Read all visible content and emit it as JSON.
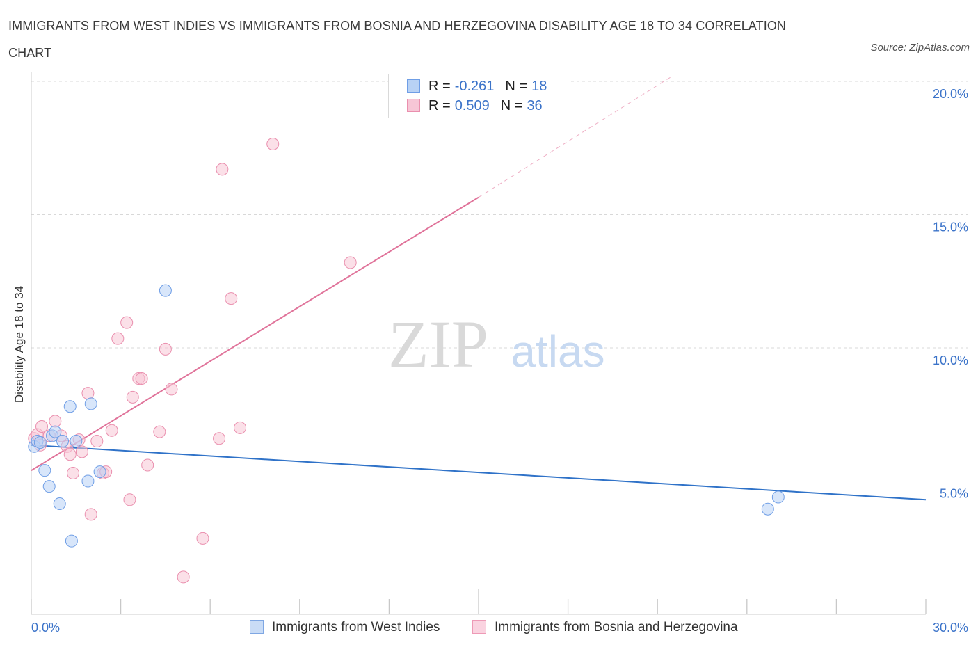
{
  "title": "IMMIGRANTS FROM WEST INDIES VS IMMIGRANTS FROM BOSNIA AND HERZEGOVINA DISABILITY AGE 18 TO 34 CORRELATION CHART",
  "source": "Source: ZipAtlas.com",
  "watermark": {
    "zip": "ZIP",
    "atlas": "atlas"
  },
  "legend": {
    "rows": [
      {
        "r_label": "R =",
        "r_value": "-0.261",
        "n_label": "N =",
        "n_value": "18"
      },
      {
        "r_label": "R =",
        "r_value": "0.509",
        "n_label": "N =",
        "n_value": "36"
      }
    ]
  },
  "chart_data": {
    "type": "scatter",
    "title": "Immigrants from West Indies vs Immigrants from Bosnia and Herzegovina Disability Age 18 to 34 Correlation Chart",
    "xlabel": "",
    "ylabel": "Disability Age 18 to 34",
    "xlim": [
      0,
      30
    ],
    "ylim": [
      0,
      20
    ],
    "x_tick_labels": [
      "0.0%",
      "30.0%"
    ],
    "y_ticks": [
      5,
      10,
      15,
      20
    ],
    "y_tick_labels": [
      "5.0%",
      "10.0%",
      "15.0%",
      "20.0%"
    ],
    "grid": true,
    "legend_position": "top-center",
    "series": [
      {
        "name": "Immigrants from West Indies",
        "color": "#6f9ee6",
        "fill": "#b8d2f5",
        "r": -0.261,
        "n": 18,
        "trend": {
          "x": [
            0,
            30
          ],
          "y": [
            6.35,
            4.3
          ]
        },
        "points": [
          {
            "x": 0.1,
            "y": 6.3
          },
          {
            "x": 0.2,
            "y": 6.5
          },
          {
            "x": 0.3,
            "y": 6.45
          },
          {
            "x": 0.45,
            "y": 5.4
          },
          {
            "x": 0.6,
            "y": 4.8
          },
          {
            "x": 0.7,
            "y": 6.7
          },
          {
            "x": 0.8,
            "y": 6.85
          },
          {
            "x": 0.95,
            "y": 4.15
          },
          {
            "x": 1.05,
            "y": 6.5
          },
          {
            "x": 1.3,
            "y": 7.8
          },
          {
            "x": 1.35,
            "y": 2.75
          },
          {
            "x": 1.5,
            "y": 6.5
          },
          {
            "x": 1.9,
            "y": 5.0
          },
          {
            "x": 2.0,
            "y": 7.9
          },
          {
            "x": 2.3,
            "y": 5.35
          },
          {
            "x": 4.5,
            "y": 12.15
          },
          {
            "x": 24.7,
            "y": 3.95
          },
          {
            "x": 25.05,
            "y": 4.4
          }
        ]
      },
      {
        "name": "Immigrants from Bosnia and Herzegovina",
        "color": "#ea8fae",
        "fill": "#f7c6d6",
        "r": 0.509,
        "n": 36,
        "trend": {
          "x": [
            0,
            15
          ],
          "y": [
            5.4,
            15.65
          ]
        },
        "trend_dashed": {
          "x": [
            15,
            21.5
          ],
          "y": [
            15.65,
            20.2
          ]
        },
        "points": [
          {
            "x": 0.1,
            "y": 6.6
          },
          {
            "x": 0.2,
            "y": 6.75
          },
          {
            "x": 0.35,
            "y": 7.05
          },
          {
            "x": 0.6,
            "y": 6.7
          },
          {
            "x": 0.8,
            "y": 7.25
          },
          {
            "x": 1.0,
            "y": 6.7
          },
          {
            "x": 1.2,
            "y": 6.3
          },
          {
            "x": 1.3,
            "y": 6.0
          },
          {
            "x": 1.4,
            "y": 5.3
          },
          {
            "x": 1.6,
            "y": 6.55
          },
          {
            "x": 1.7,
            "y": 6.1
          },
          {
            "x": 1.9,
            "y": 8.3
          },
          {
            "x": 2.0,
            "y": 3.75
          },
          {
            "x": 2.2,
            "y": 6.5
          },
          {
            "x": 2.4,
            "y": 5.3
          },
          {
            "x": 2.5,
            "y": 5.35
          },
          {
            "x": 2.7,
            "y": 6.9
          },
          {
            "x": 2.9,
            "y": 10.35
          },
          {
            "x": 3.2,
            "y": 10.95
          },
          {
            "x": 3.3,
            "y": 4.3
          },
          {
            "x": 3.4,
            "y": 8.15
          },
          {
            "x": 3.6,
            "y": 8.85
          },
          {
            "x": 3.7,
            "y": 8.85
          },
          {
            "x": 3.9,
            "y": 5.6
          },
          {
            "x": 4.3,
            "y": 6.85
          },
          {
            "x": 4.5,
            "y": 9.95
          },
          {
            "x": 4.7,
            "y": 8.45
          },
          {
            "x": 5.1,
            "y": 1.4
          },
          {
            "x": 5.75,
            "y": 2.85
          },
          {
            "x": 6.3,
            "y": 6.6
          },
          {
            "x": 6.4,
            "y": 16.7
          },
          {
            "x": 6.7,
            "y": 11.85
          },
          {
            "x": 7.0,
            "y": 7.0
          },
          {
            "x": 8.1,
            "y": 17.65
          },
          {
            "x": 10.7,
            "y": 13.2
          },
          {
            "x": 0.3,
            "y": 6.35
          }
        ]
      }
    ]
  },
  "bottom_legend": {
    "items": [
      {
        "label": "Immigrants from West Indies"
      },
      {
        "label": "Immigrants from Bosnia and Herzegovina"
      }
    ]
  },
  "colors": {
    "blue_line": "#2f72c8",
    "pink_line": "#e0739a",
    "blue_text": "#3b73c9",
    "grid": "#d8d8d8"
  }
}
